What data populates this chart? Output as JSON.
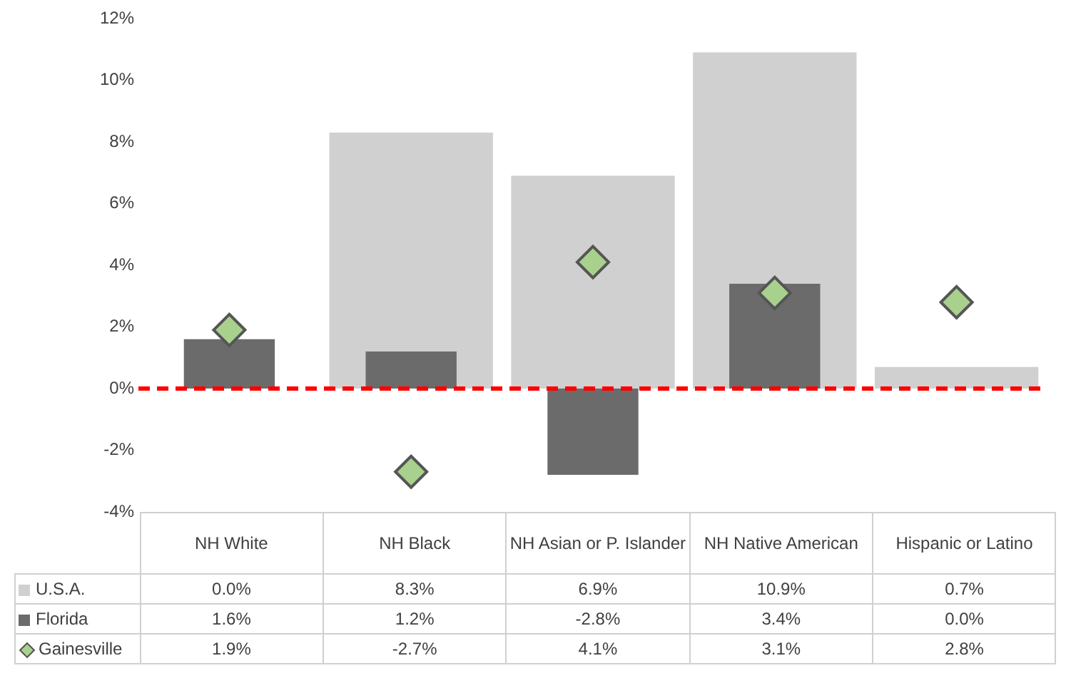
{
  "chart_data": {
    "type": "bar",
    "categories": [
      "NH White",
      "NH Black",
      "NH Asian or P. Islander",
      "NH Native American",
      "Hispanic or Latino"
    ],
    "series": [
      {
        "name": "U.S.A.",
        "color": "#d0d0d0",
        "values": [
          0.0,
          8.3,
          6.9,
          10.9,
          0.7
        ],
        "value_labels": [
          "0.0%",
          "8.3%",
          "6.9%",
          "10.9%",
          "0.7%"
        ]
      },
      {
        "name": "Florida",
        "color": "#6b6b6b",
        "values": [
          1.6,
          1.2,
          -2.8,
          3.4,
          0.0
        ],
        "value_labels": [
          "1.6%",
          "1.2%",
          "-2.8%",
          "3.4%",
          "0.0%"
        ]
      },
      {
        "name": "Gainesville",
        "type": "scatter",
        "color": "#a9d18e",
        "marker": "diamond",
        "x": [
          "NH White",
          "NH Black",
          "NH Asian or P. Islander",
          "NH Native American",
          "Hispanic or Latino"
        ],
        "values": [
          1.9,
          -2.7,
          4.1,
          3.1,
          2.8
        ],
        "value_labels": [
          "1.9%",
          "-2.7%",
          "4.1%",
          "3.1%",
          "2.8%"
        ]
      }
    ],
    "ylim": [
      -4,
      12
    ],
    "yticks": [
      {
        "value": -4,
        "label": "-4%"
      },
      {
        "value": -2,
        "label": "-2%"
      },
      {
        "value": 0,
        "label": "0%"
      },
      {
        "value": 2,
        "label": "2%"
      },
      {
        "value": 4,
        "label": "4%"
      },
      {
        "value": 6,
        "label": "6%"
      },
      {
        "value": 8,
        "label": "8%"
      },
      {
        "value": 10,
        "label": "10%"
      },
      {
        "value": 12,
        "label": "12%"
      }
    ],
    "ref_lines": [
      {
        "axis": "y",
        "value": 0,
        "color": "#ff0000",
        "line_style": "dashed"
      }
    ],
    "grid": false,
    "legend": "bottom left"
  }
}
